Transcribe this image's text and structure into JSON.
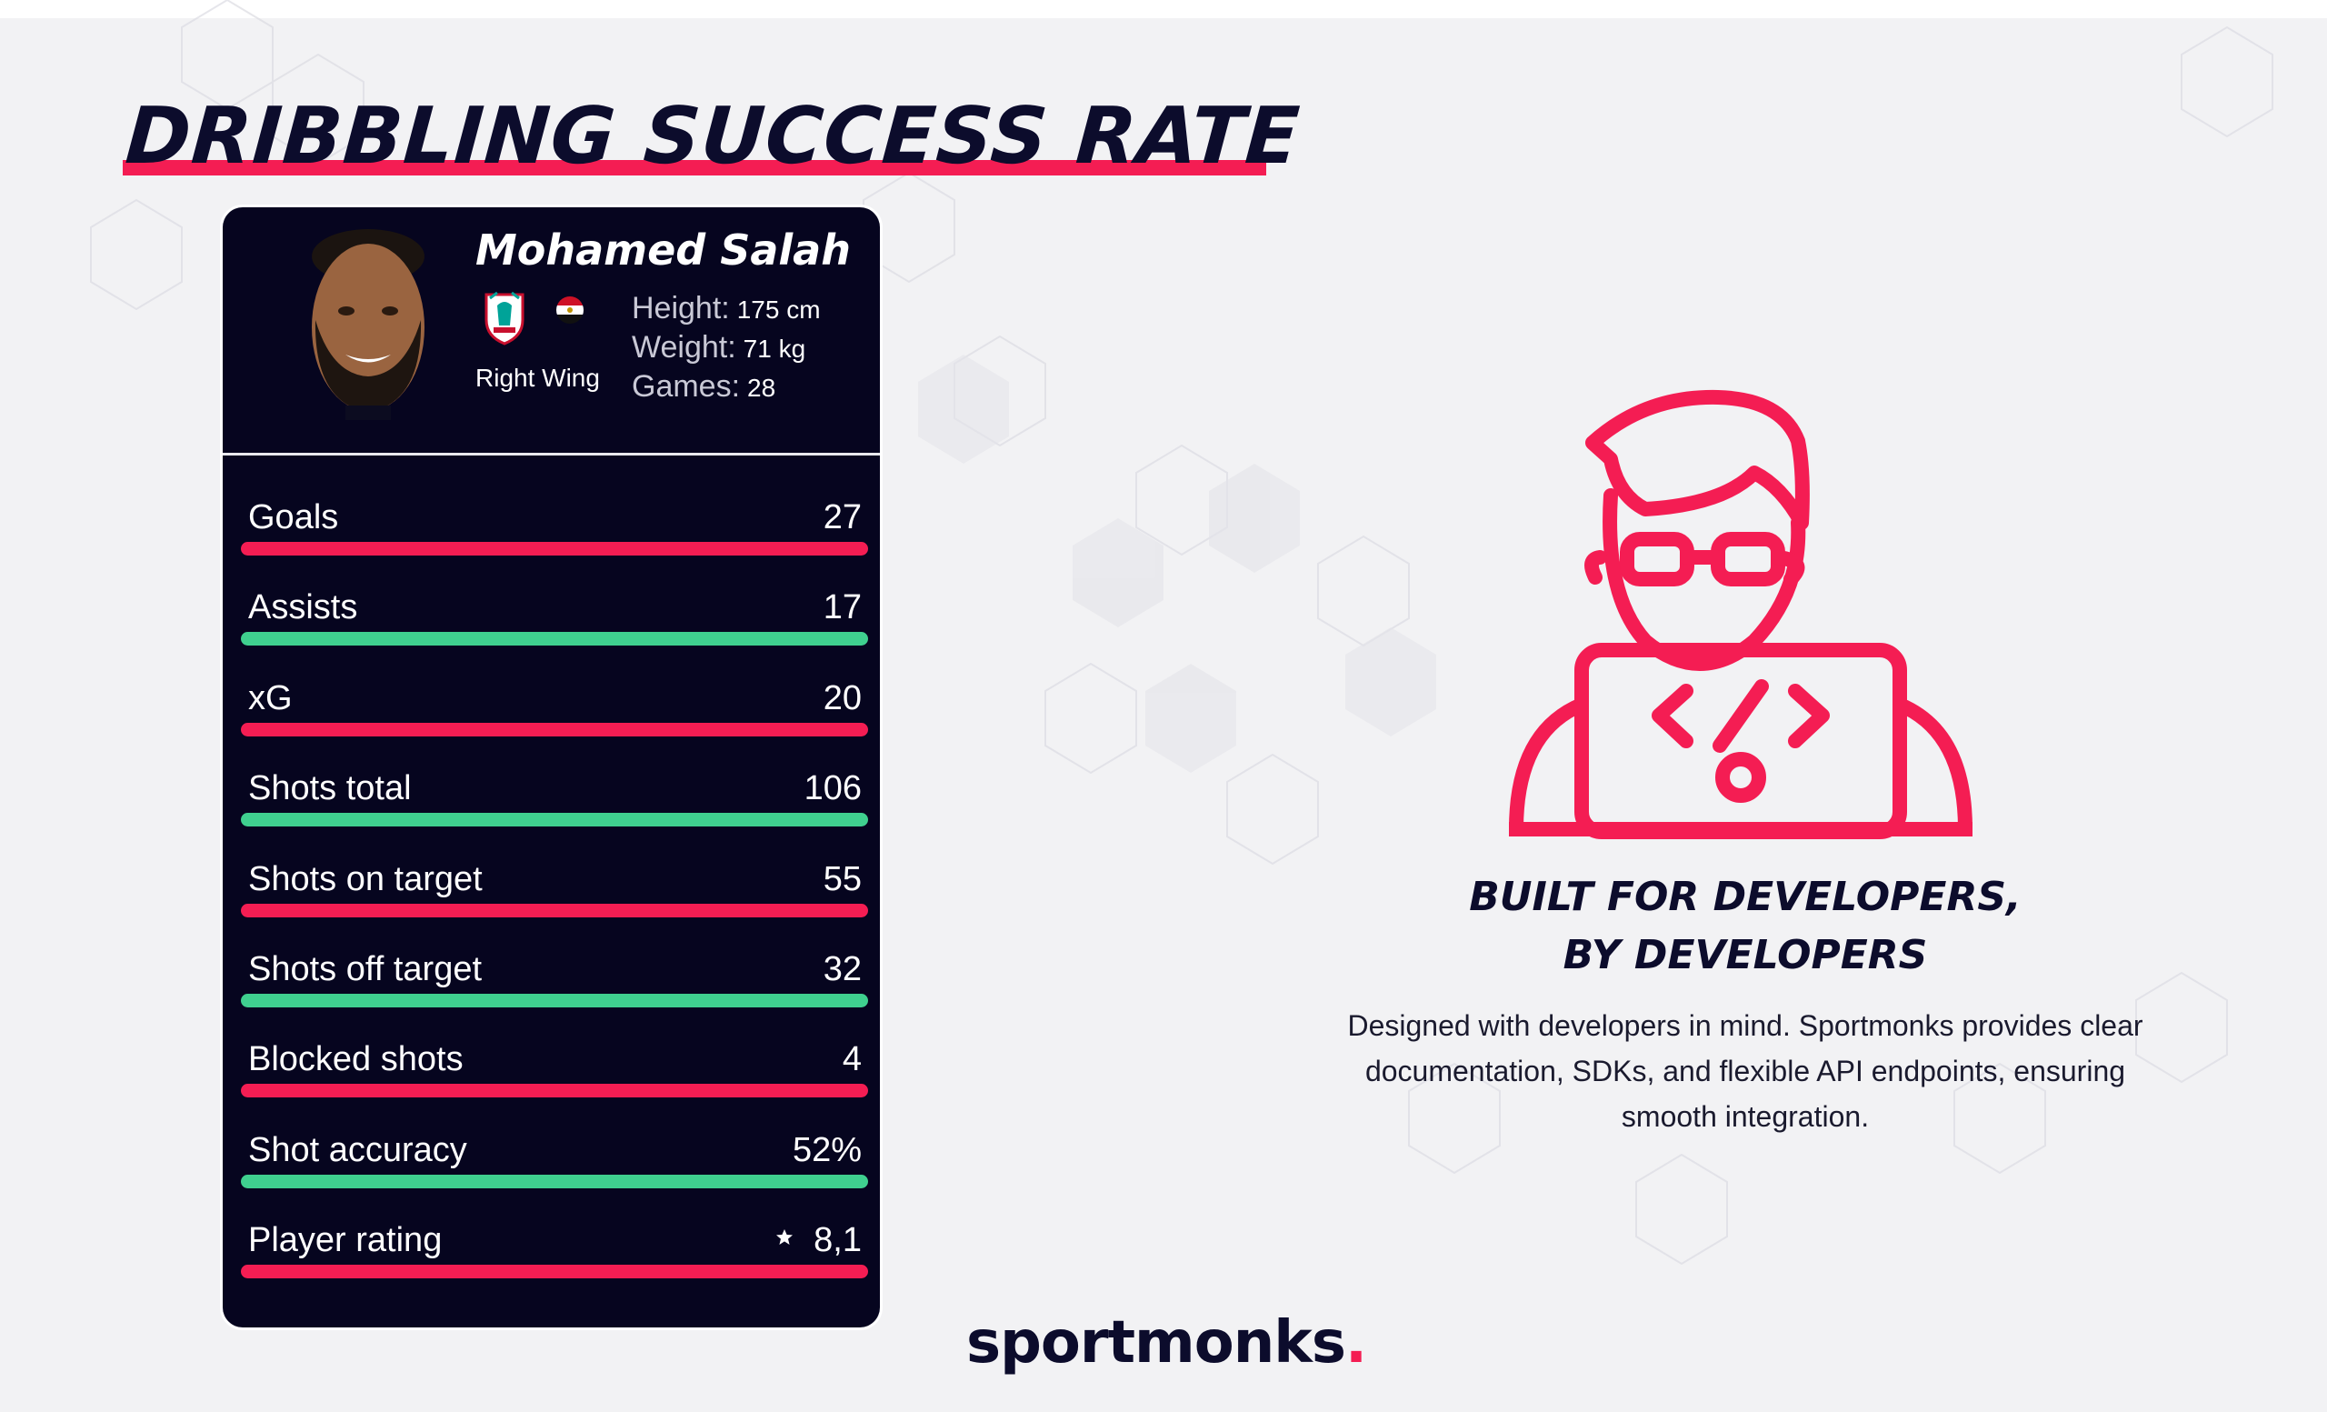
{
  "page": {
    "title": "DRIBBLING SUCCESS RATE",
    "brand_color": "#f41d53",
    "secondary_color": "#3fd08f",
    "dark_color": "#06051f"
  },
  "player": {
    "name": "Mohamed Salah",
    "position": "Right Wing",
    "club_icon": "liverpool-crest-icon",
    "flag_icon": "egypt-flag-icon",
    "meta": [
      {
        "label": "Height:",
        "value": "175 cm"
      },
      {
        "label": "Weight:",
        "value": "71 kg"
      },
      {
        "label": "Games:",
        "value": "28"
      }
    ]
  },
  "stats": [
    {
      "label": "Goals",
      "value": "27",
      "color": "#f41d53"
    },
    {
      "label": "Assists",
      "value": "17",
      "color": "#3fd08f"
    },
    {
      "label": "xG",
      "value": "20",
      "color": "#f41d53"
    },
    {
      "label": "Shots total",
      "value": "106",
      "color": "#3fd08f"
    },
    {
      "label": "Shots on target",
      "value": "55",
      "color": "#f41d53"
    },
    {
      "label": "Shots off target",
      "value": "32",
      "color": "#3fd08f"
    },
    {
      "label": "Blocked shots",
      "value": "4",
      "color": "#f41d53"
    },
    {
      "label": "Shot accuracy",
      "value": "52%",
      "color": "#3fd08f"
    },
    {
      "label": "Player rating",
      "value": "8,1",
      "color": "#f41d53",
      "icon": "star-icon"
    }
  ],
  "feature": {
    "icon": "developer-icon",
    "heading_line1": "BUILT FOR DEVELOPERS,",
    "heading_line2": "BY DEVELOPERS",
    "description": "Designed with developers in mind. Sportmonks provides clear documentation, SDKs, and flexible API endpoints, ensuring smooth integration."
  },
  "logo": {
    "text": "sportmonks",
    "dot": "."
  }
}
